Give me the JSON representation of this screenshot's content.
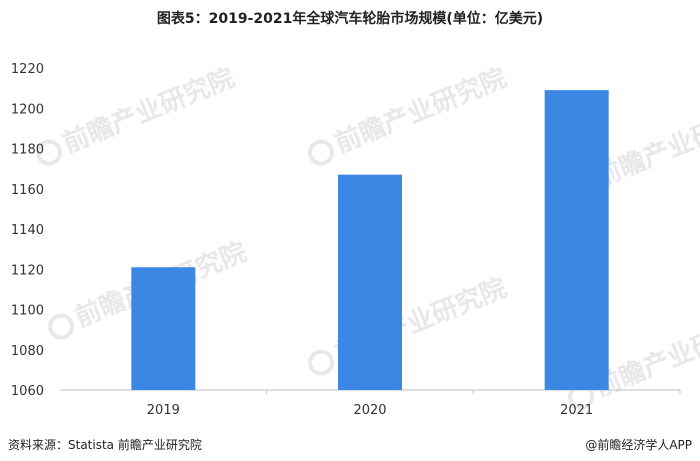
{
  "chart_data": {
    "type": "bar",
    "title": "图表5：2019-2021年全球汽车轮胎市场规模(单位：亿美元)",
    "categories": [
      "2019",
      "2020",
      "2021"
    ],
    "values": [
      1121,
      1167,
      1209
    ],
    "xlabel": "",
    "ylabel": "",
    "ylim": [
      1060,
      1220
    ],
    "yticks": [
      1060,
      1080,
      1100,
      1120,
      1140,
      1160,
      1180,
      1200,
      1220
    ],
    "bar_color": "#3d87e4",
    "grid": false,
    "legend": "none"
  },
  "watermark": {
    "text": "前瞻产业研究院"
  },
  "footer": {
    "source": "资料来源：Statista 前瞻产业研究院",
    "brand": "@前瞻经济学人APP"
  }
}
